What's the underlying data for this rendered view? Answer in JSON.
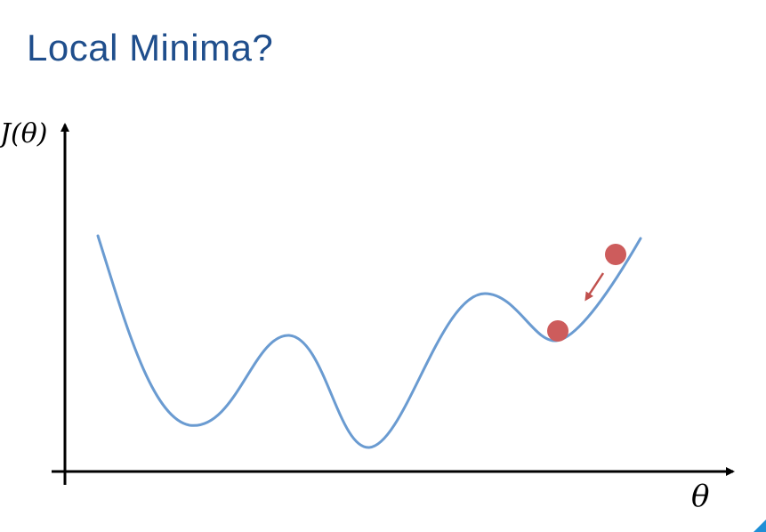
{
  "slide": {
    "title": "Local Minima?"
  },
  "axes": {
    "y_label": "J(θ)",
    "x_label": "θ"
  },
  "colors": {
    "title": "#1f4e8c",
    "curve": "#6a9bd1",
    "ball": "#cd5c5c",
    "arrow": "#c0504d",
    "axis": "#000000",
    "corner_accent": "#1f8fd6"
  },
  "balls": [
    {
      "id": "ball-upper"
    },
    {
      "id": "ball-at-local-minimum"
    }
  ]
}
